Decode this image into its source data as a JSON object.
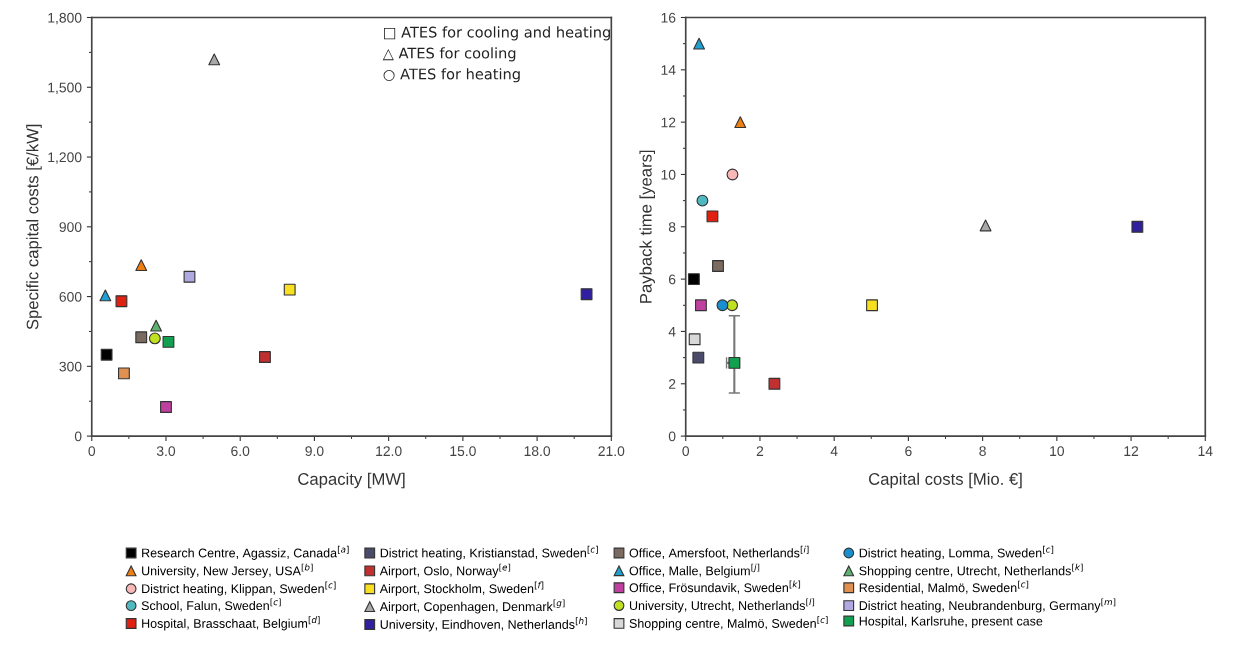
{
  "chart_data": [
    {
      "type": "scatter",
      "xlabel": "Capacity [MW]",
      "ylabel": "Specific capital costs [€/kW]",
      "xlim": [
        0,
        21
      ],
      "xticks": [
        0,
        {
          "value": 3,
          "label": "3.0"
        },
        {
          "value": 6,
          "label": "6.0"
        },
        {
          "value": 9,
          "label": "9.0"
        },
        {
          "value": 12,
          "label": "12.0"
        },
        {
          "value": 15,
          "label": "15.0"
        },
        {
          "value": 18,
          "label": "18.0"
        },
        {
          "value": 21,
          "label": "21.0"
        }
      ],
      "ylim": [
        0,
        1800
      ],
      "yticks": [
        0,
        300,
        600,
        900,
        {
          "value": 1200,
          "label": "1,200"
        },
        {
          "value": 1500,
          "label": "1,500"
        },
        {
          "value": 1800,
          "label": "1,800"
        }
      ],
      "annotations": [
        "□ ATES for cooling and heating",
        "△ ATES for cooling",
        "○ ATES for heating"
      ],
      "legend": "bottom",
      "grid": false,
      "series": [
        {
          "name": "Research Centre, Agassiz, Canada$^{[a]}$",
          "color": "#000000",
          "marker": "square",
          "x": [
            0.6
          ],
          "values": [
            350
          ]
        },
        {
          "name": "University, New Jersey, USA$^{[b]}$",
          "color": "#f07f10",
          "marker": "triangle",
          "x": [
            2.0
          ],
          "values": [
            735
          ]
        },
        {
          "name": "District heating, Klippan, Sweden$^{[c]}$",
          "color": "#f8b8b8",
          "marker": "circle",
          "x": [
            null
          ],
          "values": [
            null
          ]
        },
        {
          "name": "School, Falun, Sweden$^{[c]}$",
          "color": "#50b8c0",
          "marker": "circle",
          "x": [
            null
          ],
          "values": [
            null
          ]
        },
        {
          "name": "Hospital, Brasschaat, Belgium$^{[d]}$",
          "color": "#e02010",
          "marker": "square",
          "x": [
            1.2
          ],
          "values": [
            580
          ]
        },
        {
          "name": "District heating, Kristianstad, Sweden$^{[c]}$",
          "color": "#4a4a6a",
          "marker": "square",
          "x": [
            null
          ],
          "values": [
            null
          ]
        },
        {
          "name": "Airport, Oslo, Norway$^{[e]}$",
          "color": "#c03030",
          "marker": "square",
          "x": [
            7.0
          ],
          "values": [
            340
          ]
        },
        {
          "name": "Airport, Stockholm, Sweden$^{[f]}$",
          "color": "#f8e020",
          "marker": "square",
          "x": [
            8.0
          ],
          "values": [
            630
          ]
        },
        {
          "name": "Airport, Copenhagen, Denmark$^{[g]}$",
          "color": "#a8a8a8",
          "marker": "triangle",
          "x": [
            4.95
          ],
          "values": [
            1620
          ]
        },
        {
          "name": "University, Eindhoven, Netherlands$^{[h]}$",
          "color": "#3020a0",
          "marker": "square",
          "x": [
            20.0
          ],
          "values": [
            610
          ]
        },
        {
          "name": "Office, Amersfoot, Netherlands$^{[i]}$",
          "color": "#7a6a60",
          "marker": "square",
          "x": [
            2.0
          ],
          "values": [
            425
          ]
        },
        {
          "name": "Office, Malle, Belgium$^{[j]}$",
          "color": "#20a0d0",
          "marker": "triangle",
          "x": [
            0.55
          ],
          "values": [
            605
          ]
        },
        {
          "name": "Office, Frösundavik, Sweden$^{[k]}$",
          "color": "#c040a0",
          "marker": "square",
          "x": [
            3.0
          ],
          "values": [
            125
          ]
        },
        {
          "name": "University, Utrecht, Netherlands$^{[l]}$",
          "color": "#c0e020",
          "marker": "circle",
          "x": [
            2.55
          ],
          "values": [
            420
          ]
        },
        {
          "name": "Shopping centre, Malmö, Sweden$^{[c]}$",
          "color": "#d8d8d8",
          "marker": "square",
          "x": [
            null
          ],
          "values": [
            null
          ]
        },
        {
          "name": "District heating, Lomma, Sweden$^{[c]}$",
          "color": "#1a8fd0",
          "marker": "circle",
          "x": [
            null
          ],
          "values": [
            null
          ]
        },
        {
          "name": "Shopping centre, Utrecht, Netherlands$^{[k]}$",
          "color": "#60b070",
          "marker": "triangle",
          "x": [
            2.6
          ],
          "values": [
            475
          ]
        },
        {
          "name": "Residential, Malmö, Sweden$^{[c]}$",
          "color": "#e09050",
          "marker": "square",
          "x": [
            1.3
          ],
          "values": [
            270
          ]
        },
        {
          "name": "District heating, Neubrandenburg, Germany$^{[m]}$",
          "color": "#b0a8e0",
          "marker": "square",
          "x": [
            3.95
          ],
          "values": [
            685
          ]
        },
        {
          "name": "Hospital, Karlsruhe, present case",
          "color": "#10a050",
          "marker": "square",
          "x": [
            3.1
          ],
          "values": [
            405
          ]
        }
      ]
    },
    {
      "type": "scatter",
      "xlabel": "Capital costs [Mio. €]",
      "ylabel": "Payback time [years]",
      "xlim": [
        0,
        14
      ],
      "xticks": [
        0,
        2,
        4,
        6,
        8,
        10,
        12,
        14
      ],
      "ylim": [
        0,
        16
      ],
      "yticks": [
        0,
        2,
        4,
        6,
        8,
        10,
        12,
        14,
        16
      ],
      "grid": false,
      "series": [
        {
          "color": "#000000",
          "marker": "square",
          "x": [
            0.22
          ],
          "values": [
            6
          ]
        },
        {
          "color": "#f07f10",
          "marker": "triangle",
          "x": [
            1.47
          ],
          "values": [
            12
          ]
        },
        {
          "color": "#f8b8b8",
          "marker": "circle",
          "x": [
            1.26
          ],
          "values": [
            10
          ]
        },
        {
          "color": "#50b8c0",
          "marker": "circle",
          "x": [
            0.45
          ],
          "values": [
            9
          ]
        },
        {
          "color": "#e02010",
          "marker": "square",
          "x": [
            0.72
          ],
          "values": [
            8.4
          ]
        },
        {
          "color": "#4a4a6a",
          "marker": "square",
          "x": [
            0.34
          ],
          "values": [
            3
          ]
        },
        {
          "color": "#c03030",
          "marker": "square",
          "x": [
            2.39
          ],
          "values": [
            2
          ]
        },
        {
          "color": "#f8e020",
          "marker": "square",
          "x": [
            5.02
          ],
          "values": [
            5
          ]
        },
        {
          "color": "#a8a8a8",
          "marker": "triangle",
          "x": [
            8.08
          ],
          "values": [
            8.05
          ]
        },
        {
          "color": "#3020a0",
          "marker": "square",
          "x": [
            12.17
          ],
          "values": [
            8
          ]
        },
        {
          "color": "#7a6a60",
          "marker": "square",
          "x": [
            0.87
          ],
          "values": [
            6.5
          ]
        },
        {
          "color": "#20a0d0",
          "marker": "triangle",
          "x": [
            0.36
          ],
          "values": [
            15
          ]
        },
        {
          "color": "#c040a0",
          "marker": "square",
          "x": [
            0.41
          ],
          "values": [
            5
          ]
        },
        {
          "color": "#c0e020",
          "marker": "circle",
          "x": [
            1.25
          ],
          "values": [
            5
          ]
        },
        {
          "color": "#d8d8d8",
          "marker": "square",
          "x": [
            0.24
          ],
          "values": [
            3.7
          ]
        },
        {
          "color": "#1a8fd0",
          "marker": "circle",
          "x": [
            0.99
          ],
          "values": [
            5
          ]
        },
        {
          "color": "#10a050",
          "marker": "square",
          "x": [
            1.31
          ],
          "values": [
            2.8
          ],
          "errors": [
            [
              1.65,
              4.6
            ]
          ],
          "xerrors": [
            [
              1.1,
              1.45
            ]
          ]
        }
      ]
    }
  ]
}
